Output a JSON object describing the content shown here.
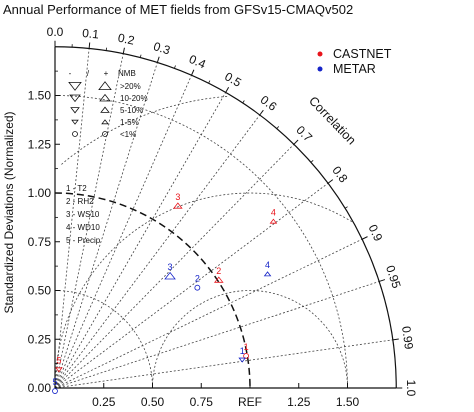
{
  "chart_data": {
    "type": "scatter",
    "subtype": "taylor-diagram",
    "title": "Annual Performance of MET fields from GFSv15-CMAQv502",
    "ylabel": "Standardized Deviations (Normalized)",
    "xlim": [
      0,
      1.75
    ],
    "ylim": [
      0,
      1.75
    ],
    "x_tick_labels": [
      "0.25",
      "0.50",
      "0.75",
      "REF",
      "1.25",
      "1.50"
    ],
    "x_tick_values": [
      0.25,
      0.5,
      0.75,
      1.0,
      1.25,
      1.5
    ],
    "y_tick_labels": [
      "0.00",
      "0.25",
      "0.50",
      "0.75",
      "1.00",
      "1.25",
      "1.50"
    ],
    "y_tick_values": [
      0,
      0.25,
      0.5,
      0.75,
      1.0,
      1.25,
      1.5
    ],
    "correlation_label": "Correlation",
    "correlation_ticks": [
      {
        "label": "0.0",
        "value": 0.0
      },
      {
        "label": "0.1",
        "value": 0.1
      },
      {
        "label": "0.2",
        "value": 0.2
      },
      {
        "label": "0.3",
        "value": 0.3
      },
      {
        "label": "0.4",
        "value": 0.4
      },
      {
        "label": "0.5",
        "value": 0.5
      },
      {
        "label": "0.6",
        "value": 0.6
      },
      {
        "label": "0.7",
        "value": 0.7
      },
      {
        "label": "0.8",
        "value": 0.8
      },
      {
        "label": "0.9",
        "value": 0.9
      },
      {
        "label": "0.95",
        "value": 0.95
      },
      {
        "label": "0.99",
        "value": 0.99
      },
      {
        "label": "1.0",
        "value": 1.0
      }
    ],
    "correlation_gridlines": [
      0.1,
      0.2,
      0.3,
      0.4,
      0.5,
      0.6,
      0.7,
      0.8,
      0.9,
      0.95,
      0.99
    ],
    "ref_arcs": [
      0.5,
      1.0,
      1.5
    ],
    "legend_series": [
      {
        "name": "CASTNET",
        "color": "#e8141b"
      },
      {
        "name": "METAR",
        "color": "#1624c8"
      }
    ],
    "variable_key": [
      "1 - T2",
      "2 - RH2",
      "3 - WS10",
      "4 - WD10",
      "5 - Precip"
    ],
    "nmb_key": {
      "header": [
        "-",
        "/",
        "+",
        "NMB"
      ],
      "rows": [
        {
          "label": ">20%",
          "symbol_size": "large"
        },
        {
          "label": "10-20%",
          "symbol_size": "medium"
        },
        {
          "label": "5-10%",
          "symbol_size": "small"
        },
        {
          "label": "1-5%",
          "symbol_size": "tiny"
        },
        {
          "label": "<1%",
          "symbol_size": "circle"
        }
      ]
    },
    "points": [
      {
        "series": "CASTNET",
        "label": "1",
        "x": 0.98,
        "y": 0.19,
        "nmb": "circle",
        "sign": "neutral"
      },
      {
        "series": "CASTNET",
        "label": "2",
        "x": 0.84,
        "y": 0.58,
        "nmb": "small",
        "sign": "+"
      },
      {
        "series": "CASTNET",
        "label": "3",
        "x": 0.63,
        "y": 0.96,
        "nmb": "small",
        "sign": "+"
      },
      {
        "series": "CASTNET",
        "label": "4",
        "x": 1.12,
        "y": 0.88,
        "nmb": "tiny",
        "sign": "+"
      },
      {
        "series": "CASTNET",
        "label": "5",
        "x": 0.02,
        "y": 0.12,
        "nmb": "tiny",
        "sign": "-"
      },
      {
        "series": "METAR",
        "label": "1",
        "x": 0.96,
        "y": 0.17,
        "nmb": "tiny",
        "sign": "-"
      },
      {
        "series": "METAR",
        "label": "2",
        "x": 0.73,
        "y": 0.54,
        "nmb": "circle",
        "sign": "neutral"
      },
      {
        "series": "METAR",
        "label": "3",
        "x": 0.59,
        "y": 0.6,
        "nmb": "medium",
        "sign": "+"
      },
      {
        "series": "METAR",
        "label": "4",
        "x": 1.09,
        "y": 0.61,
        "nmb": "tiny",
        "sign": "+"
      },
      {
        "series": "METAR",
        "label": "5",
        "x": 0.0,
        "y": 0.01,
        "nmb": "circle",
        "sign": "neutral"
      }
    ]
  }
}
